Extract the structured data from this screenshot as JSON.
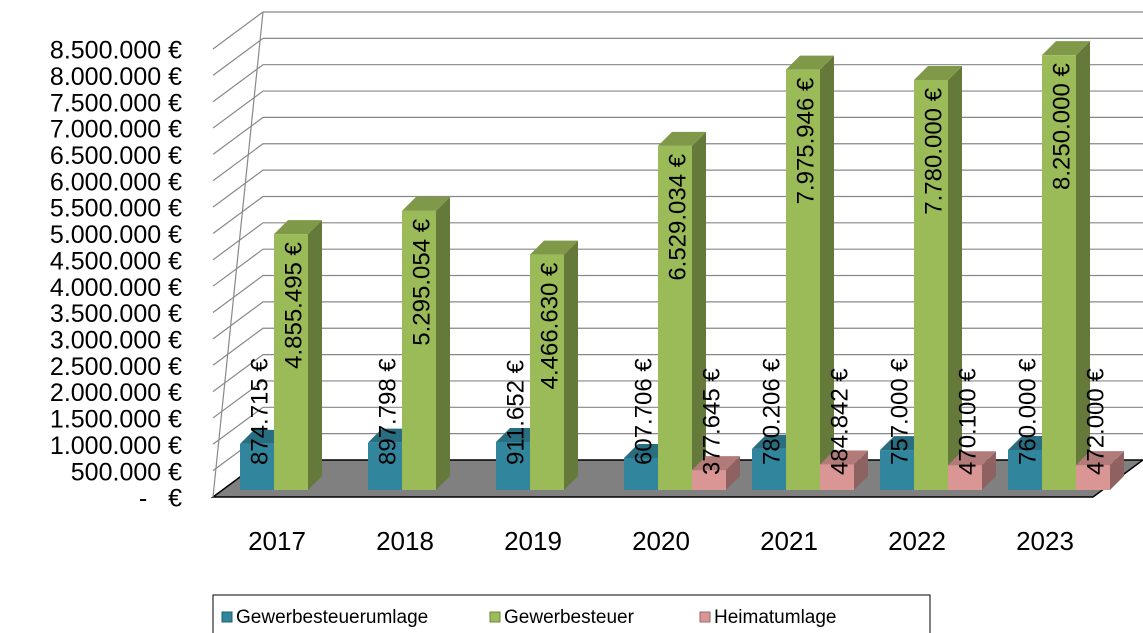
{
  "chart_data": {
    "type": "bar3d",
    "categories": [
      "2017",
      "2018",
      "2019",
      "2020",
      "2021",
      "2022",
      "2023"
    ],
    "series": [
      {
        "name": "Gewerbesteuerumlage",
        "color": "#31859c",
        "values": [
          874715,
          897798,
          911652,
          607706,
          780206,
          757000,
          760000
        ],
        "value_labels": [
          "874.715 €",
          "897.798 €",
          "911.652 €",
          "607.706 €",
          "780.206 €",
          "757.000 €",
          "760.000 €"
        ]
      },
      {
        "name": "Gewerbesteuer",
        "color": "#9bbb59",
        "values": [
          4855495,
          5295054,
          4466630,
          6529034,
          7975946,
          7780000,
          8250000
        ],
        "value_labels": [
          "4.855.495 €",
          "5.295.054 €",
          "4.466.630 €",
          "6.529.034 €",
          "7.975.946 €",
          "7.780.000 €",
          "8.250.000 €"
        ]
      },
      {
        "name": "Heimatumlage",
        "color": "#d99694",
        "values": [
          null,
          null,
          null,
          377645,
          484842,
          470100,
          472000
        ],
        "value_labels": [
          null,
          null,
          null,
          "377.645 €",
          "484.842 €",
          "470.100 €",
          "472.000 €"
        ]
      }
    ],
    "ylim": [
      0,
      8500000
    ],
    "yticks": [
      {
        "value": 0,
        "label": "-   €"
      },
      {
        "value": 500000,
        "label": "500.000 €"
      },
      {
        "value": 1000000,
        "label": "1.000.000 €"
      },
      {
        "value": 1500000,
        "label": "1.500.000 €"
      },
      {
        "value": 2000000,
        "label": "2.000.000 €"
      },
      {
        "value": 2500000,
        "label": "2.500.000 €"
      },
      {
        "value": 3000000,
        "label": "3.000.000 €"
      },
      {
        "value": 3500000,
        "label": "3.500.000 €"
      },
      {
        "value": 4000000,
        "label": "4.000.000 €"
      },
      {
        "value": 4500000,
        "label": "4.500.000 €"
      },
      {
        "value": 5000000,
        "label": "5.000.000 €"
      },
      {
        "value": 5500000,
        "label": "5.500.000 €"
      },
      {
        "value": 6000000,
        "label": "6.000.000 €"
      },
      {
        "value": 6500000,
        "label": "6.500.000 €"
      },
      {
        "value": 7000000,
        "label": "7.000.000 €"
      },
      {
        "value": 7500000,
        "label": "7.500.000 €"
      },
      {
        "value": 8000000,
        "label": "8.000.000 €"
      },
      {
        "value": 8500000,
        "label": "8.500.000 €"
      }
    ],
    "grid": true,
    "legend": "bottom"
  }
}
